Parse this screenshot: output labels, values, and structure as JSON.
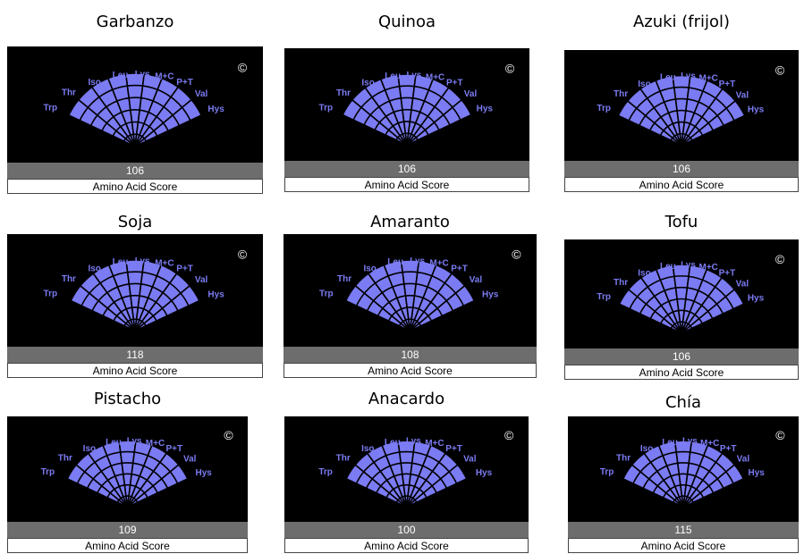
{
  "chart_data": [
    {
      "type": "radial-bar",
      "title": "Garbanzo",
      "score": "106",
      "caption": "Amino Acid Score",
      "categories": [
        "Trp",
        "Thr",
        "Iso",
        "Leu",
        "Lys",
        "M+C",
        "P+T",
        "Val",
        "Hys"
      ],
      "rings": 6,
      "ylim": [
        0,
        100
      ],
      "values": [
        100,
        100,
        100,
        100,
        100,
        100,
        100,
        100,
        100
      ],
      "copyright": "©",
      "fill": "#7b7bf3",
      "bg": "#000000"
    },
    {
      "type": "radial-bar",
      "title": "Quinoa",
      "score": "106",
      "caption": "Amino Acid Score",
      "categories": [
        "Trp",
        "Thr",
        "Iso",
        "Leu",
        "Lys",
        "M+C",
        "P+T",
        "Val",
        "Hys"
      ],
      "rings": 6,
      "ylim": [
        0,
        100
      ],
      "values": [
        100,
        100,
        100,
        100,
        100,
        100,
        100,
        100,
        100
      ],
      "copyright": "©",
      "fill": "#7b7bf3",
      "bg": "#000000"
    },
    {
      "type": "radial-bar",
      "title": "Azuki (frijol)",
      "score": "106",
      "caption": "Amino Acid Score",
      "categories": [
        "Trp",
        "Thr",
        "Iso",
        "Leu",
        "Lys",
        "M+C",
        "P+T",
        "Val",
        "Hys"
      ],
      "rings": 6,
      "ylim": [
        0,
        100
      ],
      "values": [
        100,
        100,
        100,
        100,
        100,
        100,
        100,
        100,
        100
      ],
      "copyright": "©",
      "fill": "#7b7bf3",
      "bg": "#000000"
    },
    {
      "type": "radial-bar",
      "title": "Soja",
      "score": "118",
      "caption": "Amino Acid Score",
      "categories": [
        "Trp",
        "Thr",
        "Iso",
        "Leu",
        "Lys",
        "M+C",
        "P+T",
        "Val",
        "Hys"
      ],
      "rings": 6,
      "ylim": [
        0,
        100
      ],
      "values": [
        100,
        100,
        100,
        100,
        100,
        100,
        100,
        100,
        100
      ],
      "copyright": "©",
      "fill": "#7b7bf3",
      "bg": "#000000"
    },
    {
      "type": "radial-bar",
      "title": "Amaranto",
      "score": "108",
      "caption": "Amino Acid Score",
      "categories": [
        "Trp",
        "Thr",
        "Iso",
        "Leu",
        "Lys",
        "M+C",
        "P+T",
        "Val",
        "Hys"
      ],
      "rings": 6,
      "ylim": [
        0,
        100
      ],
      "values": [
        100,
        100,
        100,
        100,
        100,
        100,
        100,
        100,
        100
      ],
      "copyright": "©",
      "fill": "#7b7bf3",
      "bg": "#000000"
    },
    {
      "type": "radial-bar",
      "title": "Tofu",
      "score": "106",
      "caption": "Amino Acid Score",
      "categories": [
        "Trp",
        "Thr",
        "Iso",
        "Leu",
        "Lys",
        "M+C",
        "P+T",
        "Val",
        "Hys"
      ],
      "rings": 6,
      "ylim": [
        0,
        100
      ],
      "values": [
        100,
        100,
        100,
        100,
        100,
        100,
        100,
        100,
        100
      ],
      "copyright": "©",
      "fill": "#7b7bf3",
      "bg": "#000000"
    },
    {
      "type": "radial-bar",
      "title": "Pistacho",
      "score": "109",
      "caption": "Amino Acid Score",
      "categories": [
        "Trp",
        "Thr",
        "Iso",
        "Leu",
        "Lys",
        "M+C",
        "P+T",
        "Val",
        "Hys"
      ],
      "rings": 6,
      "ylim": [
        0,
        100
      ],
      "values": [
        100,
        100,
        100,
        100,
        100,
        100,
        100,
        100,
        100
      ],
      "copyright": "©",
      "fill": "#7b7bf3",
      "bg": "#000000"
    },
    {
      "type": "radial-bar",
      "title": "Anacardo",
      "score": "100",
      "caption": "Amino Acid Score",
      "categories": [
        "Trp",
        "Thr",
        "Iso",
        "Leu",
        "Lys",
        "M+C",
        "P+T",
        "Val",
        "Hys"
      ],
      "rings": 6,
      "ylim": [
        0,
        100
      ],
      "values": [
        100,
        100,
        100,
        100,
        100,
        100,
        100,
        100,
        100
      ],
      "copyright": "©",
      "fill": "#7b7bf3",
      "bg": "#000000"
    },
    {
      "type": "radial-bar",
      "title": "Chía",
      "score": "115",
      "caption": "Amino Acid Score",
      "categories": [
        "Trp",
        "Thr",
        "Iso",
        "Leu",
        "Lys",
        "M+C",
        "P+T",
        "Val",
        "Hys"
      ],
      "rings": 6,
      "ylim": [
        0,
        100
      ],
      "values": [
        100,
        100,
        100,
        100,
        100,
        100,
        100,
        100,
        100
      ],
      "copyright": "©",
      "fill": "#7b7bf3",
      "bg": "#000000"
    }
  ]
}
